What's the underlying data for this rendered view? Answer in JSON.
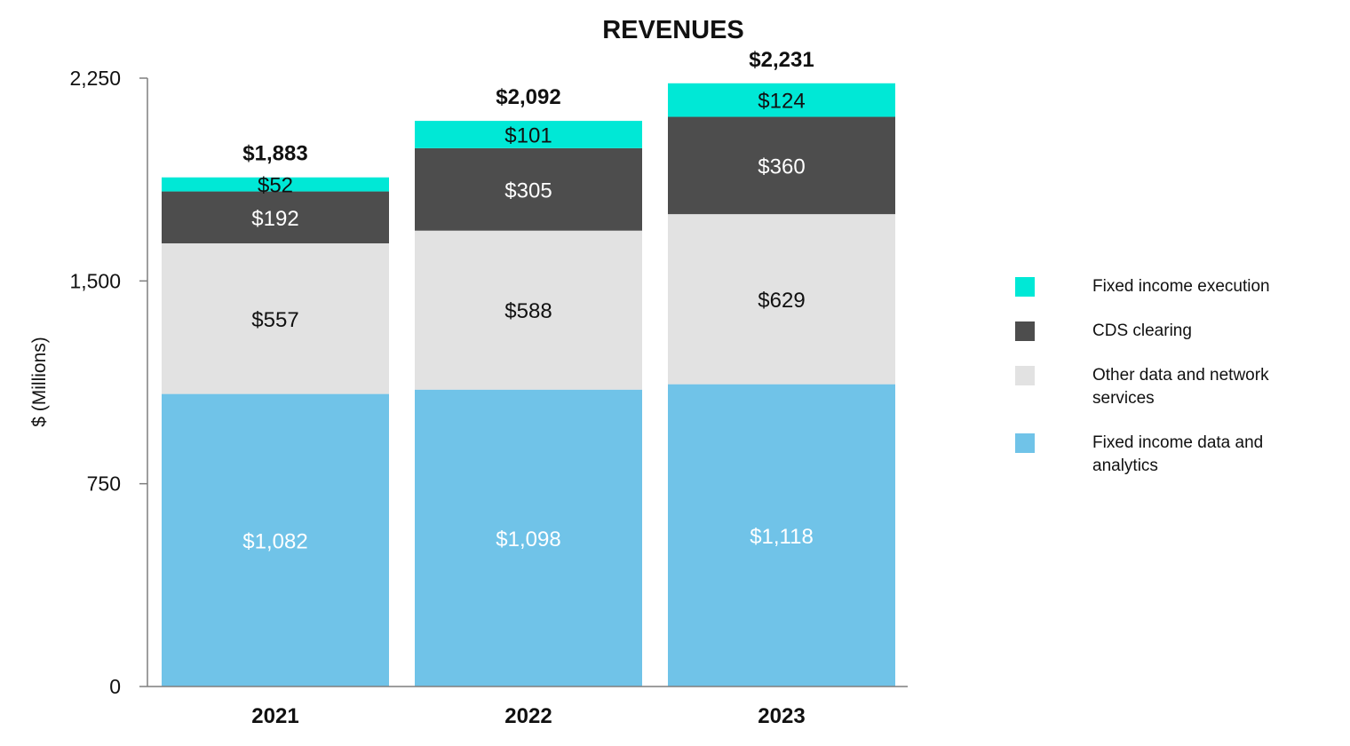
{
  "chart_data": {
    "type": "bar",
    "stacked": true,
    "title": "REVENUES",
    "ylabel": "$ (Millions)",
    "xlabel": "",
    "ylim": [
      0,
      2250
    ],
    "yticks": [
      0,
      750,
      1500,
      2250
    ],
    "ytick_labels": [
      "0",
      "750",
      "1,500",
      "2,250"
    ],
    "categories": [
      "2021",
      "2022",
      "2023"
    ],
    "totals": [
      1883,
      2092,
      2231
    ],
    "total_labels": [
      "$1,883",
      "$2,092",
      "$2,231"
    ],
    "series": [
      {
        "name": "Fixed income data and analytics",
        "color": "#70c3e8",
        "label_color": "#ffffff",
        "values": [
          1082,
          1098,
          1118
        ],
        "labels": [
          "$1,082",
          "$1,098",
          "$1,118"
        ]
      },
      {
        "name": "Other data and network services",
        "color": "#e2e2e2",
        "label_color": "#111111",
        "values": [
          557,
          588,
          629
        ],
        "labels": [
          "$557",
          "$588",
          "$629"
        ]
      },
      {
        "name": "CDS clearing",
        "color": "#4d4d4d",
        "label_color": "#ffffff",
        "values": [
          192,
          305,
          360
        ],
        "labels": [
          "$192",
          "$305",
          "$360"
        ]
      },
      {
        "name": "Fixed income execution",
        "color": "#00e8d6",
        "label_color": "#111111",
        "values": [
          52,
          101,
          124
        ],
        "labels": [
          "$52",
          "$101",
          "$124"
        ]
      }
    ],
    "legend": [
      {
        "name": "Fixed income execution",
        "color": "#00e8d6"
      },
      {
        "name": "CDS clearing",
        "color": "#4d4d4d"
      },
      {
        "name": "Other data and network services",
        "color": "#e2e2e2"
      },
      {
        "name": "Fixed income data and analytics",
        "color": "#70c3e8"
      }
    ],
    "legend_position": "right",
    "grid": false
  }
}
